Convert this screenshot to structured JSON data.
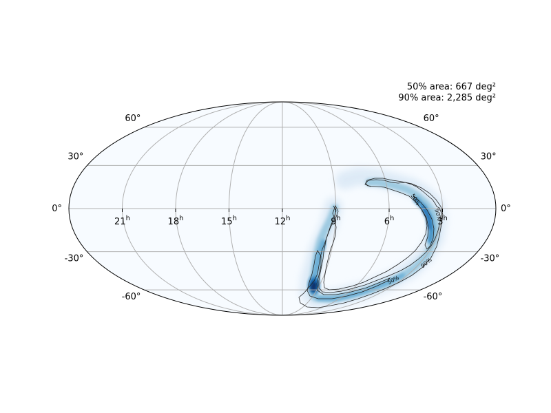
{
  "annotations": {
    "area_50": "50% area: 667 deg²",
    "area_90": "90% area: 2,285 deg²"
  },
  "projection": "mollweide",
  "colormap": "Blues",
  "grid": true,
  "ra_ticks": [
    {
      "hours": 21,
      "label": "21",
      "sup": "h"
    },
    {
      "hours": 18,
      "label": "18",
      "sup": "h"
    },
    {
      "hours": 15,
      "label": "15",
      "sup": "h"
    },
    {
      "hours": 12,
      "label": "12",
      "sup": "h"
    },
    {
      "hours": 9,
      "label": "9",
      "sup": "h"
    },
    {
      "hours": 6,
      "label": "6",
      "sup": "h"
    },
    {
      "hours": 3,
      "label": "3",
      "sup": "h"
    }
  ],
  "dec_ticks": [
    {
      "deg": 60,
      "label": "60°"
    },
    {
      "deg": 30,
      "label": "30°"
    },
    {
      "deg": 0,
      "label": "0°"
    },
    {
      "deg": -30,
      "label": "-30°"
    },
    {
      "deg": -60,
      "label": "-60°"
    }
  ],
  "contour_labels": [
    {
      "text": "50%"
    },
    {
      "text": "90%"
    },
    {
      "text": "50%"
    },
    {
      "text": "90%"
    }
  ]
}
